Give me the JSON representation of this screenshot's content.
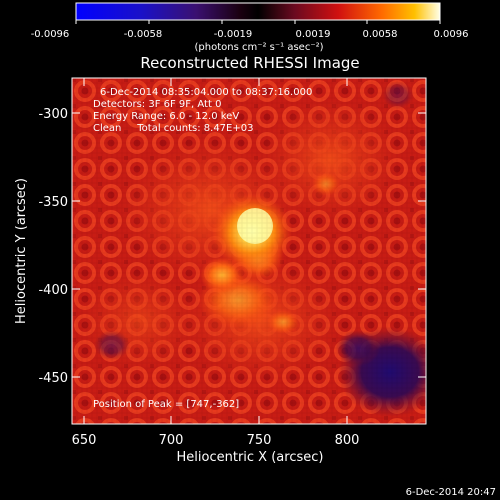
{
  "colorbar": {
    "tick_labels": [
      "-0.0096",
      "-0.0058",
      "-0.0019",
      "0.0019",
      "0.0058",
      "0.0096"
    ],
    "units_label": "(photons cm⁻² s⁻¹ asec⁻²)"
  },
  "title": "Reconstructed RHESSI Image",
  "annotations": {
    "time_range": "6-Dec-2014 08:35:04.000 to 08:37:16.000",
    "detectors": "Detectors: 3F 6F 9F, Att 0",
    "energy_range": "Energy Range: 6.0 - 12.0 keV",
    "clean_counts": "Clean     Total counts: 8.47E+03",
    "peak": "Position of Peak = [747,-362]"
  },
  "axes": {
    "xlabel": "Heliocentric X (arcsec)",
    "ylabel": "Heliocentric Y (arcsec)",
    "xticks": [
      "650",
      "700",
      "750",
      "800"
    ],
    "yticks": [
      "-300",
      "-350",
      "-400",
      "-450"
    ]
  },
  "footer_timestamp": "6-Dec-2014 20:47",
  "colors": {
    "background": "#000000",
    "source_core": "#ffff90",
    "image_base": "#cc1a12",
    "negative_region": "#1a0a6a"
  }
}
